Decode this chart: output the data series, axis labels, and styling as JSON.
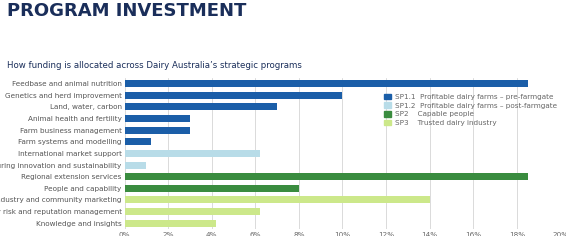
{
  "title": "PROGRAM INVESTMENT",
  "subtitle": "How funding is allocated across Dairy Australia’s strategic programs",
  "categories": [
    "Feedbase and animal nutrition",
    "Genetics and herd improvement",
    "Land, water, carbon",
    "Animal health and fertility",
    "Farm business management",
    "Farm systems and modelling",
    "International market support",
    "Manufacturing innovation and sustainability",
    "Regional extension services",
    "People and capability",
    "Industry and community marketing",
    "Industry risk and reputation management",
    "Knowledge and insights"
  ],
  "values": [
    18.5,
    10.0,
    7.0,
    3.0,
    3.0,
    1.2,
    6.2,
    1.0,
    18.5,
    8.0,
    14.0,
    6.2,
    4.2
  ],
  "colors": [
    "#1b5ea8",
    "#1b5ea8",
    "#1b5ea8",
    "#1b5ea8",
    "#1b5ea8",
    "#1b5ea8",
    "#b8dce8",
    "#b8dce8",
    "#3a8c3f",
    "#3a8c3f",
    "#cce88a",
    "#cce88a",
    "#cce88a"
  ],
  "legend_labels": [
    "SP1.1  Profitable dairy farms – pre-farmgate",
    "SP1.2  Profitable dairy farms – post-farmgate",
    "SP2    Capable people",
    "SP3    Trusted dairy industry"
  ],
  "legend_colors": [
    "#1b5ea8",
    "#b8dce8",
    "#3a8c3f",
    "#cce88a"
  ],
  "xlim": [
    0,
    20
  ],
  "xticks": [
    0,
    2,
    4,
    6,
    8,
    10,
    12,
    14,
    16,
    18,
    20
  ],
  "xtick_labels": [
    "0%",
    "2%",
    "4%",
    "6%",
    "8%",
    "10%",
    "12%",
    "14%",
    "16%",
    "18%",
    "20%"
  ],
  "title_color": "#1a2e5a",
  "subtitle_color": "#1a2e5a",
  "background_color": "#ffffff",
  "grid_color": "#cccccc",
  "bar_height": 0.6,
  "title_fontsize": 13,
  "subtitle_fontsize": 6.2,
  "label_fontsize": 5.2,
  "tick_fontsize": 5.2,
  "legend_fontsize": 5.2
}
